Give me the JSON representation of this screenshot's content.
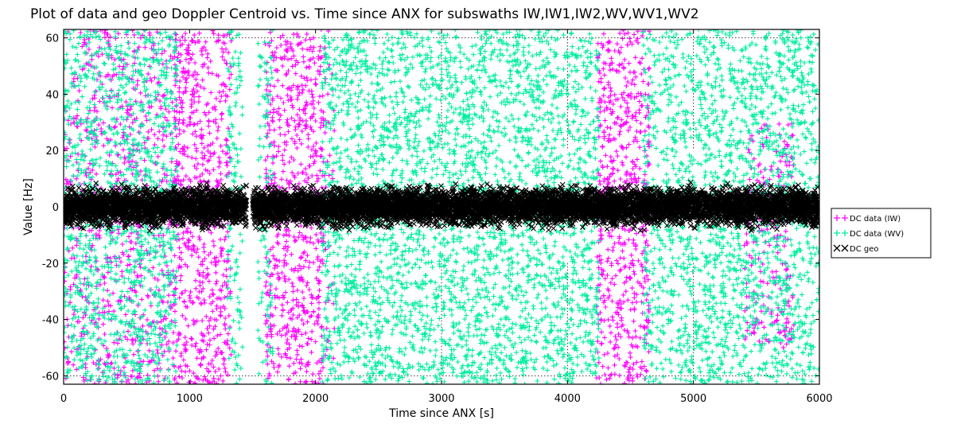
{
  "chart_data": {
    "type": "scatter",
    "title": "Plot of data and geo Doppler Centroid vs. Time since ANX for subswaths IW,IW1,IW2,WV,WV1,WV2",
    "xlabel": "Time since ANX [s]",
    "ylabel": "Value [Hz]",
    "xlim": [
      0,
      6000
    ],
    "ylim": [
      -63,
      63
    ],
    "x_ticks": [
      0,
      1000,
      2000,
      3000,
      4000,
      5000,
      6000
    ],
    "x_tick_labels": [
      "0",
      "1000",
      "2000",
      "3000",
      "4000",
      "5000",
      "6000"
    ],
    "y_ticks": [
      60,
      40,
      20,
      0,
      -20,
      -40,
      -60
    ],
    "y_tick_labels": [
      "60",
      "40",
      "20",
      "0",
      "-20",
      "-40",
      "-60"
    ],
    "grid": "dotted at y = 60 and -60, x = 3000, 4000, 5000 (upper and lower bands)",
    "legend_position": "right, outside plot",
    "series": [
      {
        "name": "DC data (IW)",
        "marker": "+",
        "color": "#ff00ff",
        "segments": [
          {
            "x": [
              0,
              900
            ],
            "y_range": [
              -63,
              63
            ],
            "density": 0.55
          },
          {
            "x": [
              880,
              1330
            ],
            "y_range": [
              -63,
              63
            ],
            "density": 0.9
          },
          {
            "x": [
              1600,
              2080
            ],
            "y_range": [
              -63,
              63
            ],
            "density": 0.9
          },
          {
            "x": [
              2080,
              2150
            ],
            "y_range": [
              -63,
              63
            ],
            "density": 0.3
          },
          {
            "x": [
              4230,
              4650
            ],
            "y_range": [
              -63,
              63
            ],
            "density": 0.9
          },
          {
            "x": [
              5400,
              5800
            ],
            "y_range": [
              -50,
              30
            ],
            "density": 0.35
          }
        ]
      },
      {
        "name": "DC data (WV)",
        "marker": "+",
        "color": "#00eea0",
        "segments": [
          {
            "x": [
              0,
              900
            ],
            "y_range": [
              -63,
              63
            ],
            "density": 0.9
          },
          {
            "x": [
              1300,
              1420
            ],
            "y_range": [
              -63,
              63
            ],
            "density": 0.7
          },
          {
            "x": [
              1540,
              1660
            ],
            "y_range": [
              -63,
              63
            ],
            "density": 0.6
          },
          {
            "x": [
              2050,
              4250
            ],
            "y_range": [
              -63,
              63
            ],
            "density": 0.95
          },
          {
            "x": [
              4600,
              4780
            ],
            "y_range": [
              -63,
              63
            ],
            "density": 0.7
          },
          {
            "x": [
              4780,
              6000
            ],
            "y_range": [
              -63,
              63
            ],
            "density": 0.9
          }
        ]
      },
      {
        "name": "DC geo",
        "marker": "x",
        "color": "#000000",
        "segments": [
          {
            "x": [
              0,
              1450
            ],
            "y_range": [
              -9,
              9
            ],
            "density": 1.0
          },
          {
            "x": [
              1500,
              6000
            ],
            "y_range": [
              -9,
              9
            ],
            "density": 1.0
          }
        ]
      }
    ]
  }
}
